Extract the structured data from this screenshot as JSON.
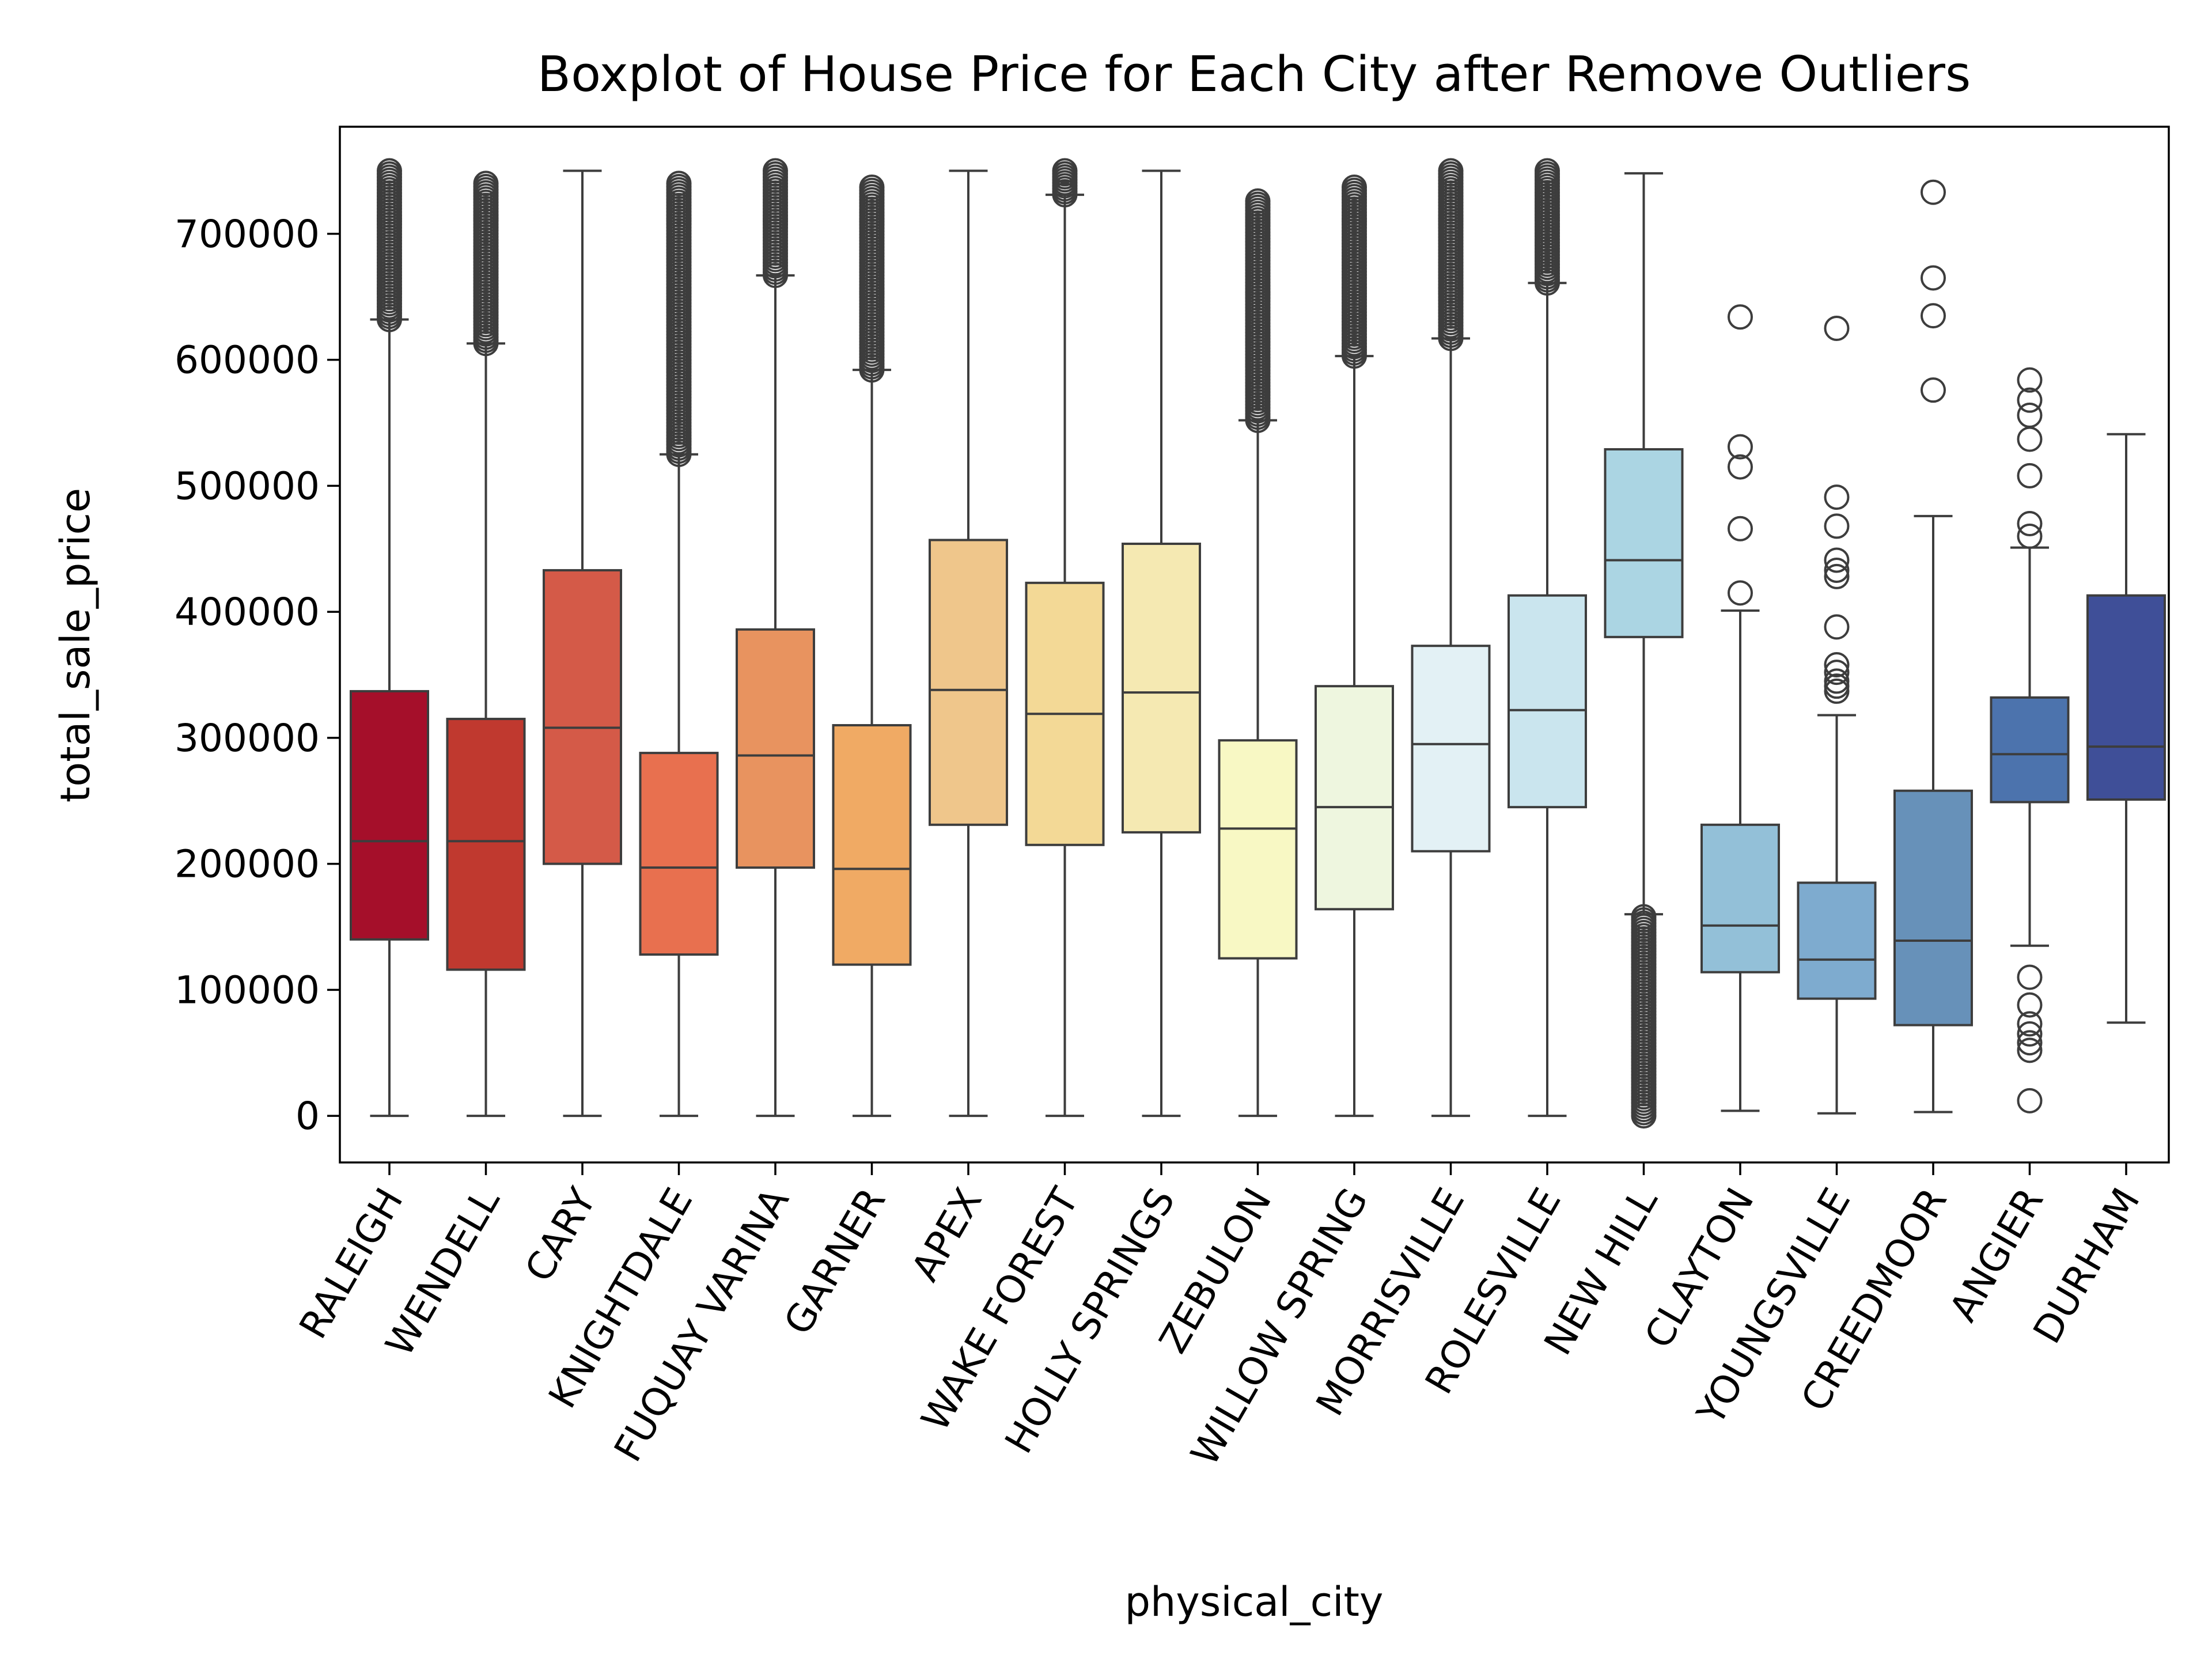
{
  "chart_data": {
    "type": "box",
    "title": "Boxplot of House Price for Each City after Remove Outliers",
    "xlabel": "physical_city",
    "ylabel": "total_sale_price",
    "ylim": [
      -37000,
      785000
    ],
    "yticks": [
      0,
      100000,
      200000,
      300000,
      400000,
      500000,
      600000,
      700000
    ],
    "ytick_labels": [
      "0",
      "100000",
      "200000",
      "300000",
      "400000",
      "500000",
      "600000",
      "700000"
    ],
    "grid": false,
    "legend": "none",
    "categories": [
      "RALEIGH",
      "WENDELL",
      "CARY",
      "KNIGHTDALE",
      "FUQUAY VARINA",
      "GARNER",
      "APEX",
      "WAKE FOREST",
      "HOLLY SPRINGS",
      "ZEBULON",
      "WILLOW SPRING",
      "MORRISVILLE",
      "ROLESVILLE",
      "NEW HILL",
      "CLAYTON",
      "YOUNGSVILLE",
      "CREEDMOOR",
      "ANGIER",
      "DURHAM"
    ],
    "boxes": [
      {
        "category": "RALEIGH",
        "color": "#a50f2a",
        "whislo": 0,
        "q1": 140000,
        "median": 218000,
        "q3": 337000,
        "whishi": 632000,
        "outliers_range": [
          632000,
          750000
        ]
      },
      {
        "category": "WENDELL",
        "color": "#c0392f",
        "whislo": 0,
        "q1": 116000,
        "median": 218000,
        "q3": 315000,
        "whishi": 613000,
        "outliers_range": [
          613000,
          740000
        ]
      },
      {
        "category": "CARY",
        "color": "#d45a48",
        "whislo": 0,
        "q1": 200000,
        "median": 308000,
        "q3": 433000,
        "whishi": 750000,
        "outliers": []
      },
      {
        "category": "KNIGHTDALE",
        "color": "#e8704f",
        "whislo": 0,
        "q1": 128000,
        "median": 197000,
        "q3": 288000,
        "whishi": 525000,
        "outliers_range": [
          525000,
          740000
        ]
      },
      {
        "category": "FUQUAY VARINA",
        "color": "#e8935f",
        "whislo": 0,
        "q1": 197000,
        "median": 286000,
        "q3": 386000,
        "whishi": 667000,
        "outliers_range": [
          667000,
          750000
        ]
      },
      {
        "category": "GARNER",
        "color": "#f0aa64",
        "whislo": 0,
        "q1": 120000,
        "median": 196000,
        "q3": 310000,
        "whishi": 592000,
        "outliers_range": [
          592000,
          737000
        ]
      },
      {
        "category": "APEX",
        "color": "#efc68b",
        "whislo": 0,
        "q1": 231000,
        "median": 338000,
        "q3": 457000,
        "whishi": 750000,
        "outliers": []
      },
      {
        "category": "WAKE FOREST",
        "color": "#f3d996",
        "whislo": 0,
        "q1": 215000,
        "median": 319000,
        "q3": 423000,
        "whishi": 731000,
        "outliers_range": [
          731000,
          750000
        ]
      },
      {
        "category": "HOLLY SPRINGS",
        "color": "#f5e9b2",
        "whislo": 0,
        "q1": 225000,
        "median": 336000,
        "q3": 454000,
        "whishi": 750000,
        "outliers": []
      },
      {
        "category": "ZEBULON",
        "color": "#f8f8c4",
        "whislo": 0,
        "q1": 125000,
        "median": 228000,
        "q3": 298000,
        "whishi": 552000,
        "outliers_range": [
          552000,
          726000
        ]
      },
      {
        "category": "WILLOW SPRING",
        "color": "#eef6df",
        "whislo": 0,
        "q1": 164000,
        "median": 245000,
        "q3": 341000,
        "whishi": 603000,
        "outliers_range": [
          603000,
          737000
        ]
      },
      {
        "category": "MORRISVILLE",
        "color": "#e3f1f5",
        "whislo": 0,
        "q1": 210000,
        "median": 295000,
        "q3": 373000,
        "whishi": 617000,
        "outliers_range": [
          617000,
          750000
        ]
      },
      {
        "category": "ROLESVILLE",
        "color": "#cae5ee",
        "whislo": 0,
        "q1": 245000,
        "median": 322000,
        "q3": 413000,
        "whishi": 661000,
        "outliers_range": [
          661000,
          750000
        ]
      },
      {
        "category": "NEW HILL",
        "color": "#abd5e3",
        "whislo": 160000,
        "q1": 380000,
        "median": 441000,
        "q3": 529000,
        "whishi": 748000,
        "outliers_range": [
          0,
          158000
        ]
      },
      {
        "category": "CLAYTON",
        "color": "#93c0d8",
        "whislo": 4000,
        "q1": 114000,
        "median": 151000,
        "q3": 231000,
        "whishi": 401000,
        "outliers": [
          415000,
          466000,
          515000,
          531000,
          634000
        ]
      },
      {
        "category": "YOUNGSVILLE",
        "color": "#7eabcf",
        "whislo": 2000,
        "q1": 93000,
        "median": 124000,
        "q3": 185000,
        "whishi": 318000,
        "outliers": [
          337000,
          341000,
          345000,
          352000,
          358000,
          388000,
          428000,
          433000,
          441000,
          468000,
          491000,
          625000
        ]
      },
      {
        "category": "CREEDMOOR",
        "color": "#6791b9",
        "whislo": 3000,
        "q1": 72000,
        "median": 139000,
        "q3": 258000,
        "whishi": 476000,
        "outliers": [
          576000,
          635000,
          665000,
          733000
        ]
      },
      {
        "category": "ANGIER",
        "color": "#4c73ad",
        "whislo": 135000,
        "q1": 249000,
        "median": 287000,
        "q3": 332000,
        "whishi": 451000,
        "outliers": [
          12000,
          52000,
          58000,
          65000,
          73000,
          88000,
          110000,
          460000,
          470000,
          508000,
          537000,
          556000,
          568000,
          584000
        ]
      },
      {
        "category": "DURHAM",
        "color": "#3f4f98",
        "whislo": 74000,
        "q1": 251000,
        "median": 293000,
        "q3": 413000,
        "whishi": 541000,
        "outliers": []
      }
    ]
  }
}
